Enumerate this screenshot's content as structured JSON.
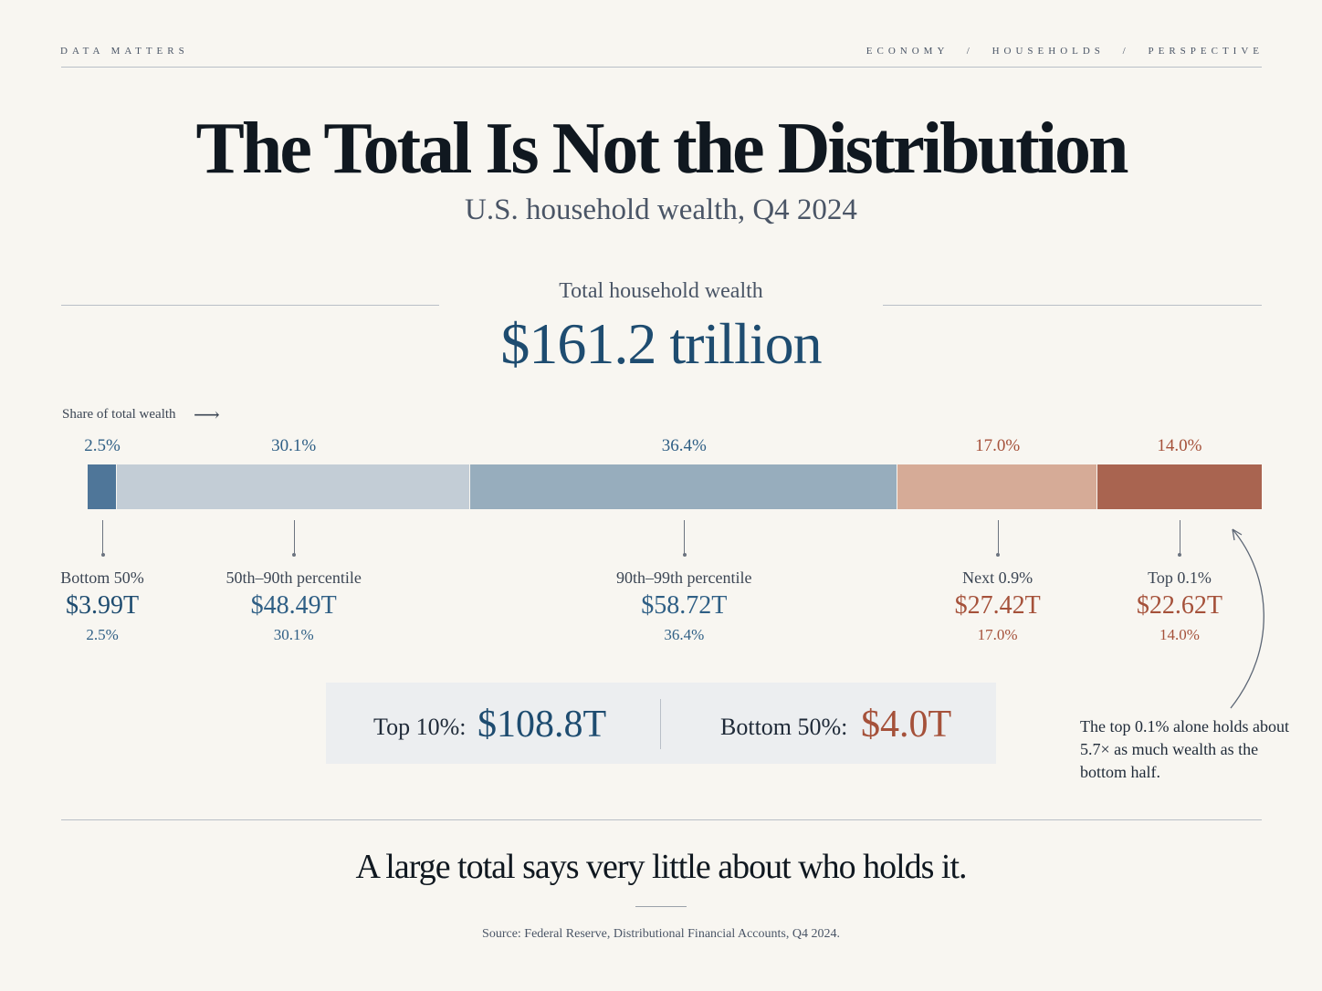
{
  "header": {
    "brand": "DATA MATTERS",
    "breadcrumb": [
      "ECONOMY",
      "HOUSEHOLDS",
      "PERSPECTIVE"
    ],
    "separator": "/"
  },
  "title": "The Total Is Not the Distribution",
  "subtitle": "U.S. household wealth, Q4 2024",
  "total": {
    "label": "Total household wealth",
    "value": "$161.2 trillion"
  },
  "share_label": "Share of total wealth",
  "chart_data": {
    "type": "bar",
    "orientation": "horizontal-stacked",
    "categories": [
      "Bottom 50%",
      "50th–90th percentile",
      "90th–99th percentile",
      "Next 0.9%",
      "Top 0.1%"
    ],
    "values": [
      2.5,
      30.1,
      36.4,
      17.0,
      14.0
    ],
    "value_labels": [
      "2.5%",
      "30.1%",
      "36.4%",
      "17.0%",
      "14.0%"
    ],
    "amounts": [
      "$3.99T",
      "$48.49T",
      "$58.72T",
      "$27.42T",
      "$22.62T"
    ],
    "colors": [
      "#4f7699",
      "#c3cdd6",
      "#97adbd",
      "#d6ab97",
      "#a96450"
    ],
    "text_colors": [
      "#2f5f85",
      "#2f5f85",
      "#2f5f85",
      "#a5513a",
      "#a5513a"
    ],
    "total": 100
  },
  "callout": {
    "top_label": "Top 10%:",
    "top_value": "$108.8T",
    "bottom_label": "Bottom 50%:",
    "bottom_value": "$4.0T"
  },
  "note": "The top 0.1% alone holds about 5.7× as much wealth as the bottom half.",
  "tagline": "A large total says very little about who holds it.",
  "source": "Source: Federal Reserve, Distributional Financial Accounts, Q4 2024."
}
